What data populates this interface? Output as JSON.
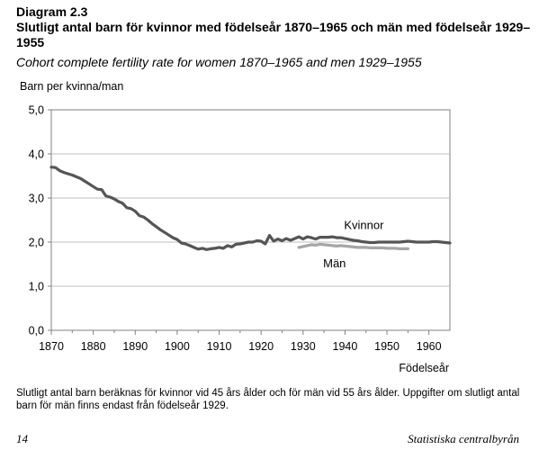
{
  "header": {
    "diagram_label": "Diagram 2.3",
    "title_sv": "Slutligt antal barn för kvinnor med födelseår 1870–1965 och män med födelseår 1929–1955",
    "title_en": "Cohort complete fertility rate for women 1870–1965 and men 1929–1955"
  },
  "chart_data": {
    "type": "line",
    "ylabel": "Barn per kvinna/man",
    "xlabel": "Födelseår",
    "xlim": [
      1870,
      1965
    ],
    "ylim": [
      0,
      5
    ],
    "x_ticks": [
      "1870",
      "1880",
      "1890",
      "1900",
      "1910",
      "1920",
      "1930",
      "1940",
      "1950",
      "1960"
    ],
    "y_ticks": [
      "0,0",
      "1,0",
      "2,0",
      "3,0",
      "4,0",
      "5,0"
    ],
    "grid": true,
    "series": [
      {
        "name": "Kvinnor",
        "color": "#555555",
        "x": [
          1870,
          1871,
          1872,
          1873,
          1874,
          1875,
          1876,
          1877,
          1878,
          1879,
          1880,
          1881,
          1882,
          1883,
          1884,
          1885,
          1886,
          1887,
          1888,
          1889,
          1890,
          1891,
          1892,
          1893,
          1894,
          1895,
          1896,
          1897,
          1898,
          1899,
          1900,
          1901,
          1902,
          1903,
          1904,
          1905,
          1906,
          1907,
          1908,
          1909,
          1910,
          1911,
          1912,
          1913,
          1914,
          1915,
          1916,
          1917,
          1918,
          1919,
          1920,
          1921,
          1922,
          1923,
          1924,
          1925,
          1926,
          1927,
          1928,
          1929,
          1930,
          1931,
          1932,
          1933,
          1934,
          1935,
          1936,
          1937,
          1938,
          1939,
          1940,
          1941,
          1942,
          1943,
          1944,
          1945,
          1946,
          1947,
          1948,
          1949,
          1950,
          1951,
          1952,
          1953,
          1954,
          1955,
          1956,
          1957,
          1958,
          1959,
          1960,
          1961,
          1962,
          1963,
          1964,
          1965
        ],
        "y": [
          3.7,
          3.69,
          3.62,
          3.58,
          3.55,
          3.52,
          3.48,
          3.44,
          3.38,
          3.32,
          3.26,
          3.2,
          3.19,
          3.05,
          3.02,
          2.98,
          2.92,
          2.88,
          2.78,
          2.76,
          2.7,
          2.6,
          2.57,
          2.5,
          2.42,
          2.35,
          2.28,
          2.22,
          2.16,
          2.1,
          2.06,
          1.98,
          1.96,
          1.92,
          1.88,
          1.84,
          1.86,
          1.83,
          1.85,
          1.86,
          1.88,
          1.86,
          1.92,
          1.89,
          1.95,
          1.96,
          1.98,
          2.0,
          2.0,
          2.03,
          2.02,
          1.96,
          2.15,
          2.02,
          2.07,
          2.03,
          2.08,
          2.04,
          2.08,
          2.12,
          2.07,
          2.12,
          2.1,
          2.07,
          2.11,
          2.11,
          2.11,
          2.12,
          2.1,
          2.1,
          2.08,
          2.06,
          2.04,
          2.03,
          2.01,
          2.0,
          1.99,
          1.99,
          2.0,
          2.0,
          2.0,
          2.0,
          2.0,
          2.0,
          2.01,
          2.02,
          2.01,
          2.0,
          2.0,
          2.0,
          2.0,
          2.01,
          2.01,
          2.0,
          1.99,
          1.98
        ]
      },
      {
        "name": "Män",
        "color": "#a6a6a6",
        "x": [
          1929,
          1930,
          1931,
          1932,
          1933,
          1934,
          1935,
          1936,
          1937,
          1938,
          1939,
          1940,
          1941,
          1942,
          1943,
          1944,
          1945,
          1946,
          1947,
          1948,
          1949,
          1950,
          1951,
          1952,
          1953,
          1954,
          1955
        ],
        "y": [
          1.88,
          1.9,
          1.92,
          1.94,
          1.93,
          1.95,
          1.94,
          1.93,
          1.92,
          1.91,
          1.92,
          1.91,
          1.9,
          1.89,
          1.88,
          1.88,
          1.88,
          1.87,
          1.87,
          1.87,
          1.87,
          1.86,
          1.86,
          1.86,
          1.85,
          1.85,
          1.85
        ]
      }
    ]
  },
  "footnote": "Slutligt antal barn beräknas för kvinnor vid 45 års ålder och för män vid 55 års ålder. Uppgifter om slutligt antal barn för män finns endast från födelseår 1929.",
  "footer": {
    "page_number": "14",
    "publisher": "Statistiska centralbyrån"
  }
}
